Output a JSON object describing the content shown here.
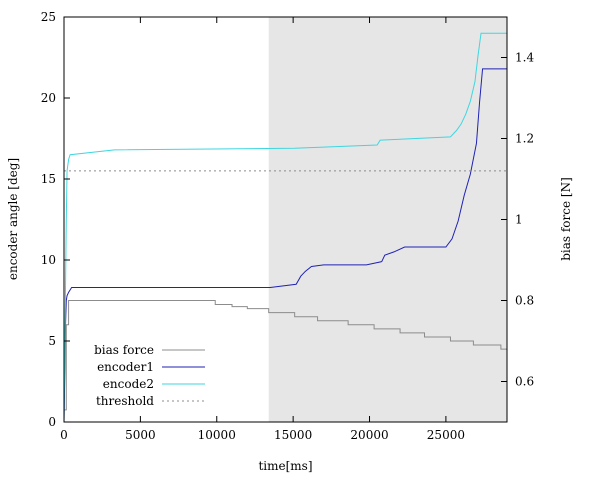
{
  "chart_data": {
    "type": "line",
    "xlabel": "time[ms]",
    "ylabel_left": "encoder angle [deg]",
    "ylabel_right": "bias force [N]",
    "xlim": [
      0,
      29000
    ],
    "ylim_left": [
      0,
      25
    ],
    "ylim_right": [
      0.5,
      1.5
    ],
    "x_ticks": [
      0,
      5000,
      10000,
      15000,
      20000,
      25000
    ],
    "y_ticks_left": [
      0,
      5,
      10,
      15,
      20,
      25
    ],
    "y_ticks_right": [
      0.6,
      0.8,
      1,
      1.2,
      1.4
    ],
    "grid": false,
    "legend_position": "bottom-left",
    "shaded_region": {
      "x_start": 13400,
      "x_end": 29000,
      "color": "#e6e6e6"
    },
    "series": [
      {
        "name": "bias force",
        "axis": "right",
        "color": "#8c8c8c",
        "dash": "",
        "step": true,
        "x": [
          0,
          150,
          300,
          9900,
          11000,
          12000,
          13400,
          15100,
          16600,
          18600,
          20300,
          22000,
          23600,
          25300,
          26800,
          28600,
          29000
        ],
        "y": [
          0.53,
          0.74,
          0.8,
          0.79,
          0.785,
          0.78,
          0.77,
          0.76,
          0.75,
          0.74,
          0.73,
          0.72,
          0.71,
          0.7,
          0.69,
          0.68,
          0.68
        ]
      },
      {
        "name": "encoder1",
        "axis": "left",
        "color": "#1f22b4",
        "dash": "",
        "step": false,
        "x": [
          0,
          100,
          150,
          200,
          300,
          500,
          13500,
          15200,
          15500,
          15800,
          16200,
          17000,
          19800,
          20800,
          21000,
          21600,
          22300,
          25000,
          25400,
          25800,
          26200,
          26600,
          27000,
          27200,
          27400,
          29000
        ],
        "y": [
          0,
          6.0,
          7.5,
          7.8,
          8.0,
          8.3,
          8.3,
          8.5,
          9.0,
          9.3,
          9.6,
          9.7,
          9.7,
          9.9,
          10.3,
          10.5,
          10.8,
          10.8,
          11.3,
          12.4,
          14.0,
          15.3,
          17.2,
          19.7,
          21.8,
          21.8
        ]
      },
      {
        "name": "encode2",
        "axis": "left",
        "color": "#3fd6e0",
        "dash": "",
        "step": false,
        "x": [
          0,
          150,
          200,
          300,
          400,
          3300,
          15100,
          20500,
          20700,
          25300,
          25700,
          26000,
          26300,
          26600,
          26900,
          27100,
          27300,
          29000
        ],
        "y": [
          0,
          12.5,
          15.5,
          16.2,
          16.5,
          16.8,
          16.9,
          17.1,
          17.4,
          17.6,
          18.0,
          18.4,
          19.0,
          19.8,
          21.0,
          22.6,
          24.0,
          24.0
        ]
      },
      {
        "name": "threshold",
        "axis": "left",
        "color": "#8c8c8c",
        "dash": "2,3",
        "step": false,
        "x": [
          0,
          29000
        ],
        "y": [
          15.5,
          15.5
        ]
      }
    ]
  }
}
